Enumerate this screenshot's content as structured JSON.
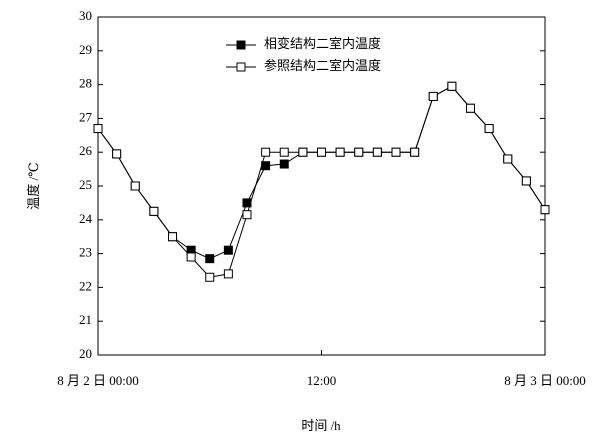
{
  "chart_data": {
    "type": "line",
    "x_label": "时间 /h",
    "y_label": "温度 /℃",
    "x": [
      0,
      1,
      2,
      3,
      4,
      5,
      6,
      7,
      8,
      9,
      10,
      11,
      12,
      13,
      14,
      15,
      16,
      17,
      18,
      19,
      20,
      21,
      22,
      23,
      24
    ],
    "series": [
      {
        "name": "相变结构二室内温度",
        "color": "#000000",
        "marker": "filled",
        "values": [
          26.7,
          25.95,
          25.0,
          24.25,
          23.5,
          23.1,
          22.85,
          23.1,
          24.5,
          25.6,
          25.65,
          26.0,
          26.0,
          26.0,
          26.0,
          26.0,
          26.0,
          26.0,
          27.65,
          27.95,
          27.3,
          26.7,
          25.8,
          25.15,
          24.3
        ]
      },
      {
        "name": "参照结构二室内温度",
        "color": "#000000",
        "marker": "open",
        "values": [
          26.7,
          25.95,
          25.0,
          24.25,
          23.5,
          22.9,
          22.3,
          22.4,
          24.15,
          26.0,
          26.0,
          26.0,
          26.0,
          26.0,
          26.0,
          26.0,
          26.0,
          26.0,
          27.65,
          27.95,
          27.3,
          26.7,
          25.8,
          25.15,
          24.3
        ]
      }
    ],
    "xlim": [
      0,
      24
    ],
    "xticks": [
      {
        "value": 0,
        "label": "8 月 2 日 00:00"
      },
      {
        "value": 12,
        "label": "12:00"
      },
      {
        "value": 24,
        "label": "8 月 3 日 00:00"
      }
    ],
    "ylim": [
      20,
      30
    ],
    "yticks": [
      20,
      21,
      22,
      23,
      24,
      25,
      26,
      27,
      28,
      29,
      30
    ],
    "grid": false,
    "legend": "top"
  }
}
